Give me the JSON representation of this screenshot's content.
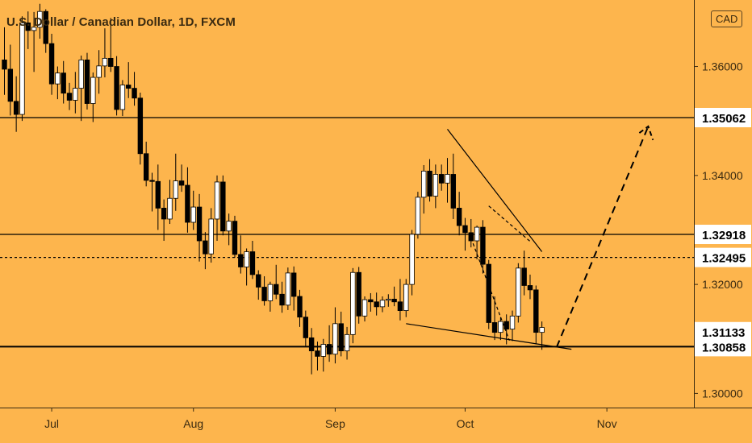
{
  "header": {
    "title": "U.S. Dollar / Canadian Dollar, 1D, FXCM",
    "currency": "CAD"
  },
  "colors": {
    "background": "#FDB54D",
    "bull_candle": "#FFFFFF",
    "bear_candle": "#000000",
    "lines": "#000000",
    "label_bg": "#FFFFFF",
    "label_text": "#000000"
  },
  "chart_data": {
    "type": "candlestick",
    "title": "U.S. Dollar / Canadian Dollar, 1D, FXCM",
    "xlabel": "",
    "ylabel": "",
    "ylim": [
      1.2974,
      1.3722
    ],
    "y_ticks": [
      "1.30000",
      "1.32000",
      "1.34000",
      "1.36000"
    ],
    "x_ticks": [
      {
        "index": 8,
        "label": "Jul"
      },
      {
        "index": 32,
        "label": "Aug"
      },
      {
        "index": 56,
        "label": "Sep"
      },
      {
        "index": 78,
        "label": "Oct"
      },
      {
        "index": 102,
        "label": "Nov"
      }
    ],
    "grid": false,
    "horizontal_levels": [
      {
        "price": 1.35062,
        "label": "1.35062",
        "style": "solid"
      },
      {
        "price": 1.32918,
        "label": "1.32918",
        "style": "solid"
      },
      {
        "price": 1.32495,
        "label": "1.32495",
        "style": "dashed"
      },
      {
        "price": 1.31133,
        "label": "1.31133",
        "style": "label-only"
      },
      {
        "price": 1.30858,
        "label": "1.30858",
        "style": "solid-bold"
      }
    ],
    "trend_lines": [
      {
        "from": [
          75,
          1.3485
        ],
        "to": [
          91,
          1.326
        ],
        "style": "solid"
      },
      {
        "from": [
          82,
          1.3344
        ],
        "to": [
          89,
          1.3279
        ],
        "style": "dashed"
      },
      {
        "from": [
          79,
          1.3285
        ],
        "to": [
          85.5,
          1.3097
        ],
        "style": "dashed"
      },
      {
        "from": [
          68,
          1.3128
        ],
        "to": [
          96,
          1.3081
        ],
        "style": "solid"
      }
    ],
    "projection": [
      [
        93.5,
        1.3085
      ],
      [
        109,
        1.349
      ]
    ],
    "projection_arrowhead": [
      [
        107.5,
        1.3478
      ],
      [
        109,
        1.349
      ],
      [
        109.8,
        1.3465
      ]
    ],
    "candles": [
      [
        1.3612,
        1.3672,
        1.3548,
        1.3595
      ],
      [
        1.3595,
        1.364,
        1.351,
        1.3536
      ],
      [
        1.3536,
        1.3582,
        1.348,
        1.3512
      ],
      [
        1.3512,
        1.3692,
        1.35,
        1.368
      ],
      [
        1.368,
        1.3701,
        1.3632,
        1.3666
      ],
      [
        1.3666,
        1.37,
        1.359,
        1.3672
      ],
      [
        1.3672,
        1.3715,
        1.3651,
        1.3701
      ],
      [
        1.3701,
        1.3705,
        1.3625,
        1.3642
      ],
      [
        1.3642,
        1.366,
        1.3548,
        1.3568
      ],
      [
        1.3568,
        1.36,
        1.354,
        1.3588
      ],
      [
        1.3588,
        1.361,
        1.3532,
        1.3551
      ],
      [
        1.3551,
        1.357,
        1.352,
        1.3538
      ],
      [
        1.3538,
        1.359,
        1.3514,
        1.356
      ],
      [
        1.356,
        1.362,
        1.35,
        1.3612
      ],
      [
        1.3612,
        1.3625,
        1.3521,
        1.3532
      ],
      [
        1.3532,
        1.3589,
        1.3498,
        1.358
      ],
      [
        1.358,
        1.363,
        1.355,
        1.3601
      ],
      [
        1.3601,
        1.367,
        1.358,
        1.3615
      ],
      [
        1.3615,
        1.3689,
        1.359,
        1.36
      ],
      [
        1.36,
        1.3619,
        1.351,
        1.3521
      ],
      [
        1.3521,
        1.3575,
        1.3509,
        1.3566
      ],
      [
        1.3566,
        1.3608,
        1.3542,
        1.356
      ],
      [
        1.356,
        1.359,
        1.3528,
        1.3542
      ],
      [
        1.3542,
        1.3552,
        1.342,
        1.344
      ],
      [
        1.344,
        1.3462,
        1.338,
        1.3391
      ],
      [
        1.3391,
        1.3405,
        1.3334,
        1.3389
      ],
      [
        1.3389,
        1.342,
        1.33,
        1.334
      ],
      [
        1.334,
        1.3356,
        1.328,
        1.332
      ],
      [
        1.332,
        1.3392,
        1.3311,
        1.3358
      ],
      [
        1.3358,
        1.344,
        1.3335,
        1.339
      ],
      [
        1.339,
        1.342,
        1.337,
        1.3382
      ],
      [
        1.3382,
        1.3415,
        1.3295,
        1.3314
      ],
      [
        1.3314,
        1.3372,
        1.33,
        1.3342
      ],
      [
        1.3342,
        1.3366,
        1.3242,
        1.328
      ],
      [
        1.328,
        1.3296,
        1.3228,
        1.3256
      ],
      [
        1.3256,
        1.334,
        1.324,
        1.332
      ],
      [
        1.332,
        1.34,
        1.328,
        1.3388
      ],
      [
        1.3388,
        1.34,
        1.329,
        1.3298
      ],
      [
        1.3298,
        1.333,
        1.3272,
        1.3316
      ],
      [
        1.3316,
        1.3326,
        1.3249,
        1.3255
      ],
      [
        1.3255,
        1.329,
        1.322,
        1.3232
      ],
      [
        1.3232,
        1.3266,
        1.3198,
        1.326
      ],
      [
        1.326,
        1.328,
        1.321,
        1.3218
      ],
      [
        1.3218,
        1.3226,
        1.3172,
        1.3195
      ],
      [
        1.3195,
        1.3215,
        1.3161,
        1.317
      ],
      [
        1.317,
        1.3205,
        1.315,
        1.32
      ],
      [
        1.32,
        1.3236,
        1.3173,
        1.3182
      ],
      [
        1.3182,
        1.3205,
        1.3148,
        1.3162
      ],
      [
        1.3162,
        1.3231,
        1.3153,
        1.3221
      ],
      [
        1.3221,
        1.3233,
        1.3152,
        1.3178
      ],
      [
        1.3178,
        1.319,
        1.3122,
        1.314
      ],
      [
        1.314,
        1.3152,
        1.3086,
        1.3102
      ],
      [
        1.3102,
        1.312,
        1.3035,
        1.3078
      ],
      [
        1.3078,
        1.3095,
        1.3042,
        1.3068
      ],
      [
        1.3068,
        1.31,
        1.304,
        1.309
      ],
      [
        1.309,
        1.3125,
        1.3058,
        1.3072
      ],
      [
        1.3072,
        1.3158,
        1.3055,
        1.3128
      ],
      [
        1.3128,
        1.315,
        1.3068,
        1.3078
      ],
      [
        1.3078,
        1.3122,
        1.3062,
        1.3108
      ],
      [
        1.3108,
        1.323,
        1.3092,
        1.3222
      ],
      [
        1.3222,
        1.3232,
        1.3128,
        1.3142
      ],
      [
        1.3142,
        1.3178,
        1.3132,
        1.3172
      ],
      [
        1.3172,
        1.3184,
        1.315,
        1.3168
      ],
      [
        1.3168,
        1.3185,
        1.3143,
        1.3159
      ],
      [
        1.3159,
        1.3178,
        1.3149,
        1.3171
      ],
      [
        1.3171,
        1.3182,
        1.3159,
        1.3173
      ],
      [
        1.3173,
        1.3196,
        1.316,
        1.3168
      ],
      [
        1.3168,
        1.321,
        1.3134,
        1.3152
      ],
      [
        1.3152,
        1.321,
        1.314,
        1.32
      ],
      [
        1.32,
        1.33,
        1.318,
        1.3292
      ],
      [
        1.3292,
        1.337,
        1.3284,
        1.336
      ],
      [
        1.336,
        1.3419,
        1.333,
        1.3408
      ],
      [
        1.3408,
        1.343,
        1.3352,
        1.3362
      ],
      [
        1.3362,
        1.342,
        1.334,
        1.3402
      ],
      [
        1.3402,
        1.342,
        1.3372,
        1.3386
      ],
      [
        1.3386,
        1.3432,
        1.335,
        1.3402
      ],
      [
        1.3402,
        1.344,
        1.332,
        1.334
      ],
      [
        1.334,
        1.337,
        1.329,
        1.3308
      ],
      [
        1.3308,
        1.3322,
        1.3262,
        1.3295
      ],
      [
        1.3295,
        1.332,
        1.3268,
        1.328
      ],
      [
        1.328,
        1.3308,
        1.3246,
        1.3305
      ],
      [
        1.3305,
        1.3318,
        1.322,
        1.3237
      ],
      [
        1.3237,
        1.3245,
        1.3118,
        1.313
      ],
      [
        1.313,
        1.3178,
        1.3098,
        1.3112
      ],
      [
        1.3112,
        1.314,
        1.3098,
        1.3132
      ],
      [
        1.3132,
        1.3145,
        1.309,
        1.3118
      ],
      [
        1.3118,
        1.3152,
        1.3096,
        1.3142
      ],
      [
        1.3142,
        1.3239,
        1.313,
        1.323
      ],
      [
        1.323,
        1.3262,
        1.318,
        1.3198
      ],
      [
        1.3198,
        1.3218,
        1.3173,
        1.319
      ],
      [
        1.319,
        1.3198,
        1.309,
        1.3112
      ],
      [
        1.3112,
        1.3132,
        1.308,
        1.3121
      ]
    ]
  }
}
